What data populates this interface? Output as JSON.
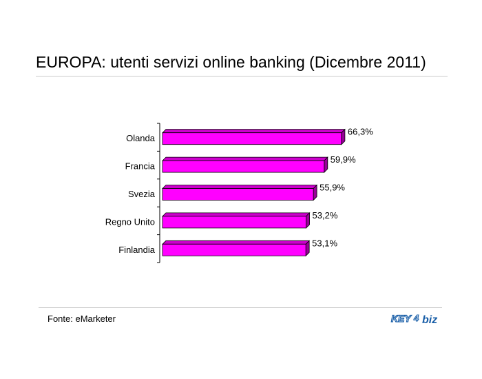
{
  "title": "EUROPA: utenti servizi online banking (Dicembre 2011)",
  "source": "Fonte: eMarketer",
  "logo": {
    "text_key": "KEY",
    "text_num": "4",
    "text_biz": "biz",
    "color": "#1a5fa8"
  },
  "colors": {
    "bar_front": "#ff00ff",
    "bar_top": "#cc00cc",
    "bar_side": "#990099",
    "bar_edge": "#000000"
  },
  "chart_data": {
    "type": "bar",
    "orientation": "horizontal",
    "categories": [
      "Olanda",
      "Francia",
      "Svezia",
      "Regno Unito",
      "Finlandia"
    ],
    "values": [
      66.3,
      59.9,
      55.9,
      53.2,
      53.1
    ],
    "value_labels": [
      "66,3%",
      "59,9%",
      "55,9%",
      "53,2%",
      "53,1%"
    ],
    "title": "EUROPA: utenti servizi online banking (Dicembre 2011)",
    "xlabel": "",
    "ylabel": "",
    "xlim": [
      0,
      70
    ],
    "grid": false,
    "legend": "none",
    "style": "3d"
  }
}
